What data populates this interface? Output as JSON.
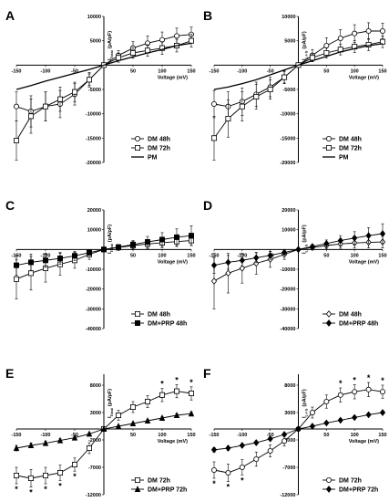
{
  "chart_data": [
    {
      "panel": "A",
      "type": "line",
      "xlabel": "Voltage (mV)",
      "ylabel": "I",
      "ylabel_sub": "Total",
      "ylabel_unit": "(pA/pF)",
      "xlim": [
        -150,
        150
      ],
      "ylim": [
        -20000,
        10000
      ],
      "xticks": [
        -150,
        -100,
        -50,
        50,
        100,
        150
      ],
      "yticks": [
        10000,
        5000,
        -5000,
        -10000,
        -15000,
        -20000
      ],
      "x": [
        -150,
        -125,
        -100,
        -75,
        -50,
        -25,
        0,
        25,
        50,
        75,
        100,
        125,
        150
      ],
      "series": [
        {
          "name": "DM 48h",
          "marker": "circle",
          "values": [
            -8500,
            -9500,
            -8500,
            -8000,
            -6000,
            -3000,
            0,
            2000,
            3500,
            4500,
            5200,
            6000,
            6300
          ],
          "err": [
            3000,
            3200,
            3000,
            2800,
            2200,
            1500,
            0,
            1000,
            1300,
            1500,
            1600,
            1600,
            1500
          ]
        },
        {
          "name": "DM 72h",
          "marker": "square",
          "values": [
            -15500,
            -10500,
            -8500,
            -7000,
            -5500,
            -3000,
            0,
            1500,
            2500,
            3000,
            3500,
            4000,
            5000
          ],
          "err": [
            4000,
            3500,
            3000,
            2500,
            2000,
            1200,
            0,
            900,
            1100,
            1200,
            1300,
            1300,
            1300
          ]
        },
        {
          "name": "PM",
          "marker": "none",
          "values": [
            -5000,
            -4200,
            -3300,
            -2500,
            -1700,
            -900,
            0,
            900,
            1700,
            2500,
            3200,
            4000,
            4500
          ],
          "err": []
        }
      ],
      "legend_position": "bottom-right"
    },
    {
      "panel": "B",
      "type": "line",
      "xlabel": "Voltage (mV)",
      "ylabel": "I",
      "ylabel_sub": "L-I-S",
      "ylabel_unit": "(pA/pF)",
      "xlim": [
        -150,
        150
      ],
      "ylim": [
        -20000,
        10000
      ],
      "xticks": [
        -150,
        -100,
        -50,
        50,
        100,
        150
      ],
      "yticks": [
        10000,
        5000,
        -5000,
        -10000,
        -15000,
        -20000
      ],
      "x": [
        -150,
        -125,
        -100,
        -75,
        -50,
        -25,
        0,
        25,
        50,
        75,
        100,
        125,
        150
      ],
      "series": [
        {
          "name": "DM 48h",
          "marker": "circle",
          "values": [
            -8000,
            -8500,
            -7500,
            -6000,
            -4500,
            -2500,
            0,
            2000,
            4000,
            5500,
            6500,
            7000,
            7000
          ],
          "err": [
            2800,
            3000,
            2800,
            2500,
            2000,
            1300,
            0,
            1200,
            1600,
            1800,
            1800,
            1700,
            1600
          ]
        },
        {
          "name": "DM 72h",
          "marker": "square",
          "values": [
            -15000,
            -11000,
            -8500,
            -6500,
            -5000,
            -2500,
            0,
            1500,
            2500,
            3200,
            3800,
            4200,
            4800
          ],
          "err": [
            4500,
            3800,
            3000,
            2500,
            2000,
            1200,
            0,
            800,
            1000,
            1100,
            1200,
            1200,
            1200
          ]
        },
        {
          "name": "PM",
          "marker": "none",
          "values": [
            -5000,
            -4500,
            -3800,
            -3000,
            -2000,
            -1000,
            0,
            900,
            1800,
            2700,
            3400,
            4000,
            4400
          ],
          "err": []
        }
      ],
      "legend_position": "bottom-right"
    },
    {
      "panel": "C",
      "type": "line",
      "xlabel": "Voltage (mV)",
      "ylabel": "I",
      "ylabel_sub": "Total",
      "ylabel_unit": "(pA/pF)",
      "xlim": [
        -150,
        150
      ],
      "ylim": [
        -40000,
        20000
      ],
      "xticks": [
        -150,
        -100,
        50,
        100,
        150
      ],
      "yticks": [
        20000,
        10000,
        -10000,
        -20000,
        -30000,
        -40000
      ],
      "x": [
        -150,
        -125,
        -100,
        -75,
        -50,
        -25,
        0,
        25,
        50,
        75,
        100,
        125,
        150
      ],
      "series": [
        {
          "name": "DM 48h",
          "marker": "square-open",
          "values": [
            -15000,
            -12000,
            -9500,
            -7500,
            -5500,
            -2500,
            0,
            1000,
            2000,
            2800,
            3400,
            4000,
            4500
          ],
          "err": [
            10000,
            8500,
            7000,
            5500,
            4000,
            2500,
            0,
            1500,
            2000,
            2300,
            2500,
            2500,
            2500
          ]
        },
        {
          "name": "DM+PRP 48h",
          "marker": "square-filled",
          "values": [
            -8000,
            -6500,
            -5500,
            -4500,
            -3200,
            -1600,
            0,
            1200,
            2500,
            3800,
            5000,
            6200,
            7000
          ],
          "err": [
            5000,
            4200,
            3600,
            3000,
            2300,
            1400,
            0,
            1200,
            2000,
            2800,
            3500,
            4200,
            5000
          ]
        }
      ],
      "legend_position": "bottom-right"
    },
    {
      "panel": "D",
      "type": "line",
      "xlabel": "Voltage (mV)",
      "ylabel": "I",
      "ylabel_sub": "L-I-S",
      "ylabel_unit": "(pA/pF)",
      "xlim": [
        -150,
        150
      ],
      "ylim": [
        -40000,
        20000
      ],
      "xticks": [
        -150,
        -100,
        -50,
        50,
        100,
        150
      ],
      "yticks": [
        20000,
        10000,
        -10000,
        -20000,
        -30000,
        -40000
      ],
      "x": [
        -150,
        -125,
        -100,
        -75,
        -50,
        -25,
        0,
        25,
        50,
        75,
        100,
        125,
        150
      ],
      "series": [
        {
          "name": "DM 48h",
          "marker": "diamond-open",
          "values": [
            -16000,
            -12000,
            -9500,
            -7000,
            -5000,
            -2500,
            0,
            1000,
            2000,
            2800,
            3300,
            3600,
            3800
          ],
          "err": [
            14000,
            10000,
            7500,
            5500,
            4000,
            2500,
            0,
            1200,
            1800,
            2200,
            2600,
            2800,
            3000
          ]
        },
        {
          "name": "DM+PRP 48h",
          "marker": "diamond-filled",
          "values": [
            -8000,
            -6500,
            -5500,
            -4200,
            -3000,
            -1500,
            0,
            1500,
            3000,
            4500,
            5800,
            7000,
            8000
          ],
          "err": [
            4000,
            3500,
            3000,
            2500,
            2000,
            1200,
            0,
            1000,
            1800,
            2500,
            3200,
            4000,
            5000
          ]
        }
      ],
      "legend_position": "bottom-right"
    },
    {
      "panel": "E",
      "type": "line",
      "xlabel": "Voltage (mV)",
      "ylabel": "I",
      "ylabel_sub": "Total",
      "ylabel_unit": "(pA/pF)",
      "xlim": [
        -150,
        150
      ],
      "ylim": [
        -12000,
        10000
      ],
      "xticks": [
        -150,
        -100,
        -50,
        50,
        100,
        150
      ],
      "yticks": [
        8000,
        3000,
        -2000,
        -7000,
        -12000
      ],
      "x": [
        -150,
        -125,
        -100,
        -75,
        -50,
        -25,
        0,
        25,
        50,
        75,
        100,
        125,
        150
      ],
      "series": [
        {
          "name": "DM 72h",
          "marker": "square",
          "values": [
            -8500,
            -9000,
            -8500,
            -8000,
            -6500,
            -3500,
            0,
            2500,
            4000,
            5000,
            6200,
            6900,
            6500
          ],
          "err": [
            1500,
            1600,
            1500,
            1400,
            1200,
            1000,
            0,
            900,
            1000,
            1100,
            1200,
            1200,
            1200
          ]
        },
        {
          "name": "DM+PRP 72h",
          "marker": "triangle",
          "values": [
            -3500,
            -3000,
            -2600,
            -2100,
            -1600,
            -900,
            0,
            500,
            1000,
            1500,
            2000,
            2500,
            2800
          ],
          "err": [
            500,
            400,
            400,
            300,
            300,
            200,
            0,
            200,
            200,
            300,
            300,
            300,
            300
          ]
        }
      ],
      "significance": [
        "*",
        "*",
        "*",
        "*",
        "*",
        "*",
        "*",
        "*"
      ],
      "legend_position": "bottom-right"
    },
    {
      "panel": "F",
      "type": "line",
      "xlabel": "Voltage (mV)",
      "ylabel": "I",
      "ylabel_sub": "L-I-S",
      "ylabel_unit": "(pA/pF)",
      "xlim": [
        -150,
        150
      ],
      "ylim": [
        -12000,
        10000
      ],
      "xticks": [
        -150,
        -100,
        -50,
        50,
        100,
        150
      ],
      "yticks": [
        8000,
        3000,
        -2000,
        -7000,
        -12000
      ],
      "x": [
        -150,
        -125,
        -100,
        -75,
        -50,
        -25,
        0,
        25,
        50,
        75,
        100,
        125,
        150
      ],
      "series": [
        {
          "name": "DM 72h",
          "marker": "circle",
          "values": [
            -7500,
            -8000,
            -7000,
            -5500,
            -4000,
            -2200,
            0,
            3000,
            5000,
            6200,
            6800,
            7200,
            6800
          ],
          "err": [
            1500,
            1600,
            1400,
            1300,
            1100,
            900,
            0,
            1000,
            1200,
            1300,
            1300,
            1300,
            1200
          ]
        },
        {
          "name": "DM+PRP 72h",
          "marker": "diamond",
          "values": [
            -3800,
            -3500,
            -3000,
            -2500,
            -1800,
            -1000,
            0,
            500,
            1100,
            1600,
            2100,
            2600,
            3000
          ],
          "err": [
            400,
            400,
            300,
            300,
            300,
            200,
            0,
            200,
            200,
            300,
            300,
            300,
            300
          ]
        }
      ],
      "significance": [
        "*",
        "*",
        "*",
        "*",
        "*",
        "*",
        "*"
      ],
      "legend_position": "bottom-right"
    }
  ]
}
